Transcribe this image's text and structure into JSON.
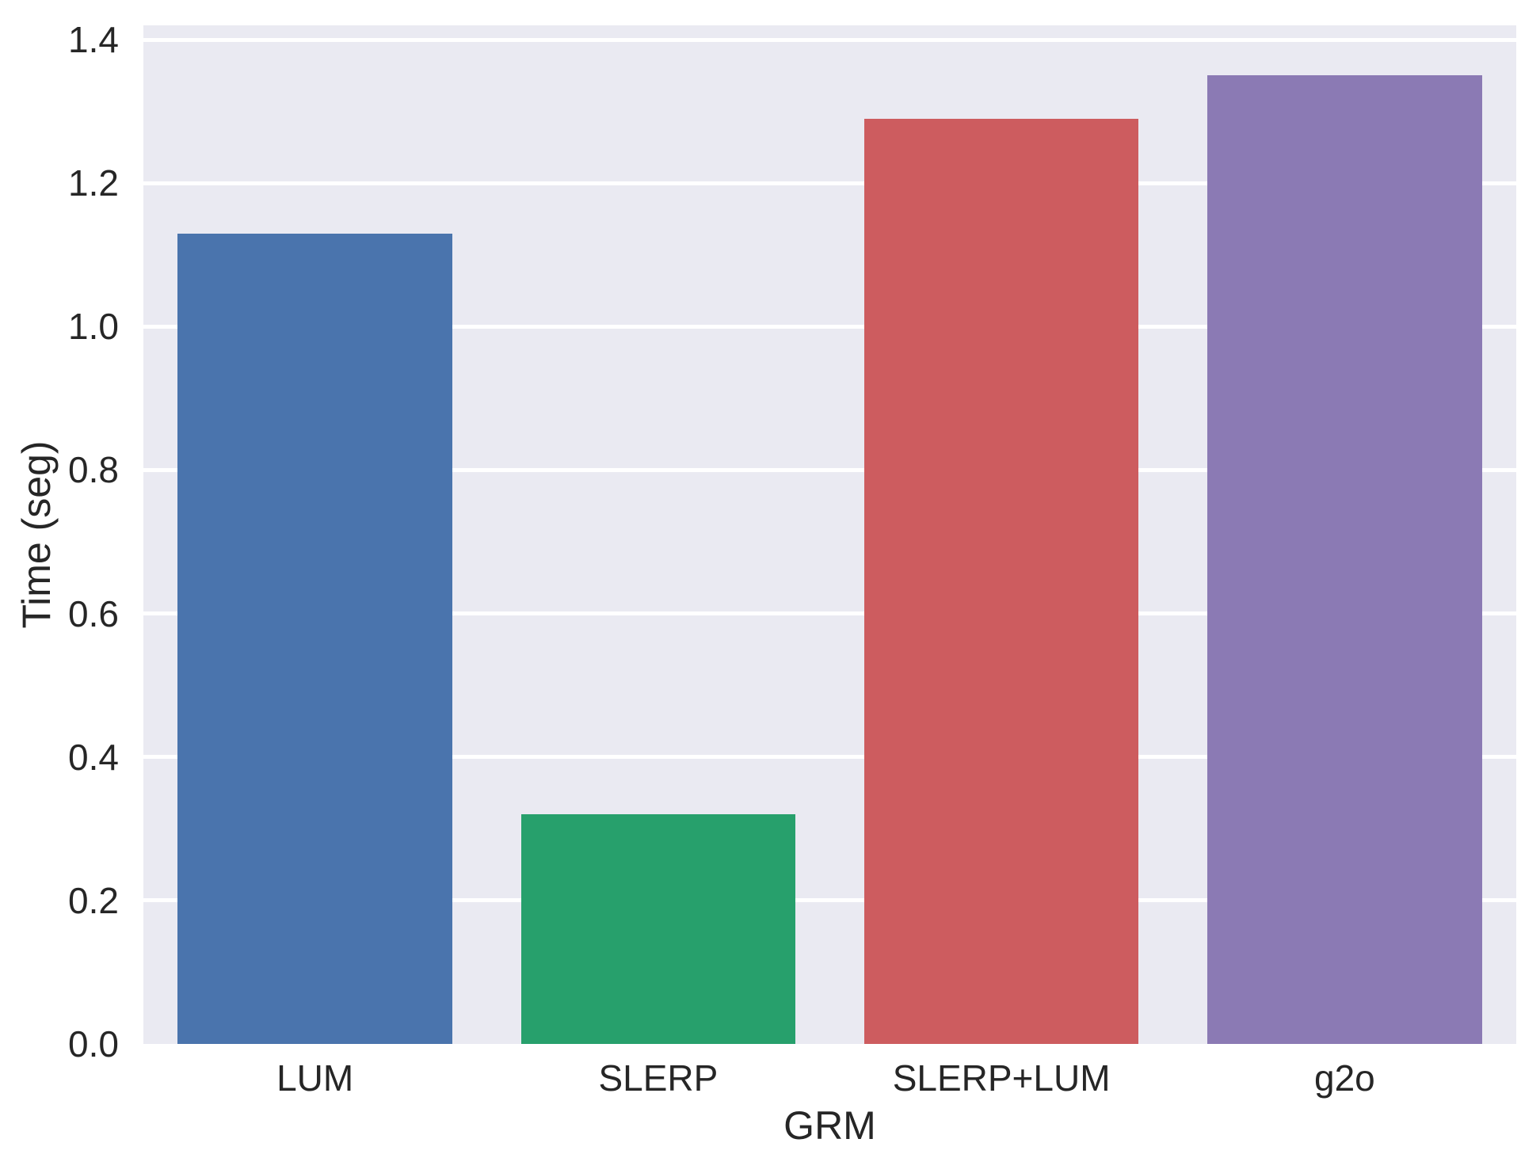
{
  "chart_data": {
    "type": "bar",
    "title": "",
    "xlabel": "GRM",
    "ylabel": "Time (seg)",
    "categories": [
      "LUM",
      "SLERP",
      "SLERP+LUM",
      "g2o"
    ],
    "values": [
      1.13,
      0.32,
      1.29,
      1.35
    ],
    "bar_colors": [
      "#4a74ad",
      "#27a06c",
      "#cd5c5f",
      "#8b7ab4"
    ],
    "yticks": [
      0.0,
      0.2,
      0.4,
      0.6,
      0.8,
      1.0,
      1.2,
      1.4
    ],
    "ylim": [
      0,
      1.42
    ],
    "grid": true,
    "legend": "none",
    "style": {
      "plot_background": "#eaeaf2",
      "gridline_color": "#ffffff",
      "text_color": "#262626",
      "figure_background": "#ffffff",
      "bar_width_fraction": 0.8
    }
  }
}
